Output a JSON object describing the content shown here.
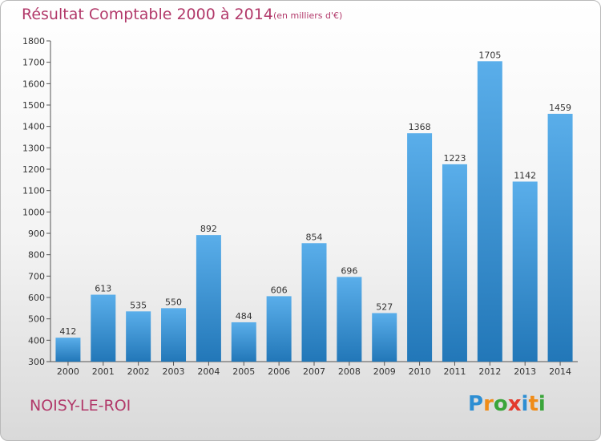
{
  "header": {
    "title": "Résultat Comptable 2000 à 2014",
    "subtitle": "(en milliers d'€)"
  },
  "footer": {
    "commune": "NOISY-LE-ROI",
    "logo_text": "Proxiti",
    "logo_colors": [
      "#2d8ed3",
      "#f08c18",
      "#3aa53a",
      "#e33a2c",
      "#2d8ed3",
      "#f08c18",
      "#3aa53a"
    ]
  },
  "chart_data": {
    "type": "bar",
    "categories": [
      "2000",
      "2001",
      "2002",
      "2003",
      "2004",
      "2005",
      "2006",
      "2007",
      "2008",
      "2009",
      "2010",
      "2011",
      "2012",
      "2013",
      "2014"
    ],
    "values": [
      412,
      613,
      535,
      550,
      892,
      484,
      606,
      854,
      696,
      527,
      1368,
      1223,
      1705,
      1142,
      1459
    ],
    "data_labels": [
      "412",
      "613",
      "535",
      "550",
      "892",
      "484",
      "606",
      "854",
      "696",
      "527",
      "1368",
      "1223",
      "1705",
      "1142",
      "1459"
    ],
    "yticks": [
      300,
      400,
      500,
      600,
      700,
      800,
      900,
      1000,
      1100,
      1200,
      1300,
      1400,
      1500,
      1600,
      1700,
      1800
    ],
    "ylim": [
      300,
      1800
    ],
    "grid": false,
    "bar_color_top": "#5aaeea",
    "bar_color_bottom": "#2277b8",
    "text_color": "#333333"
  }
}
